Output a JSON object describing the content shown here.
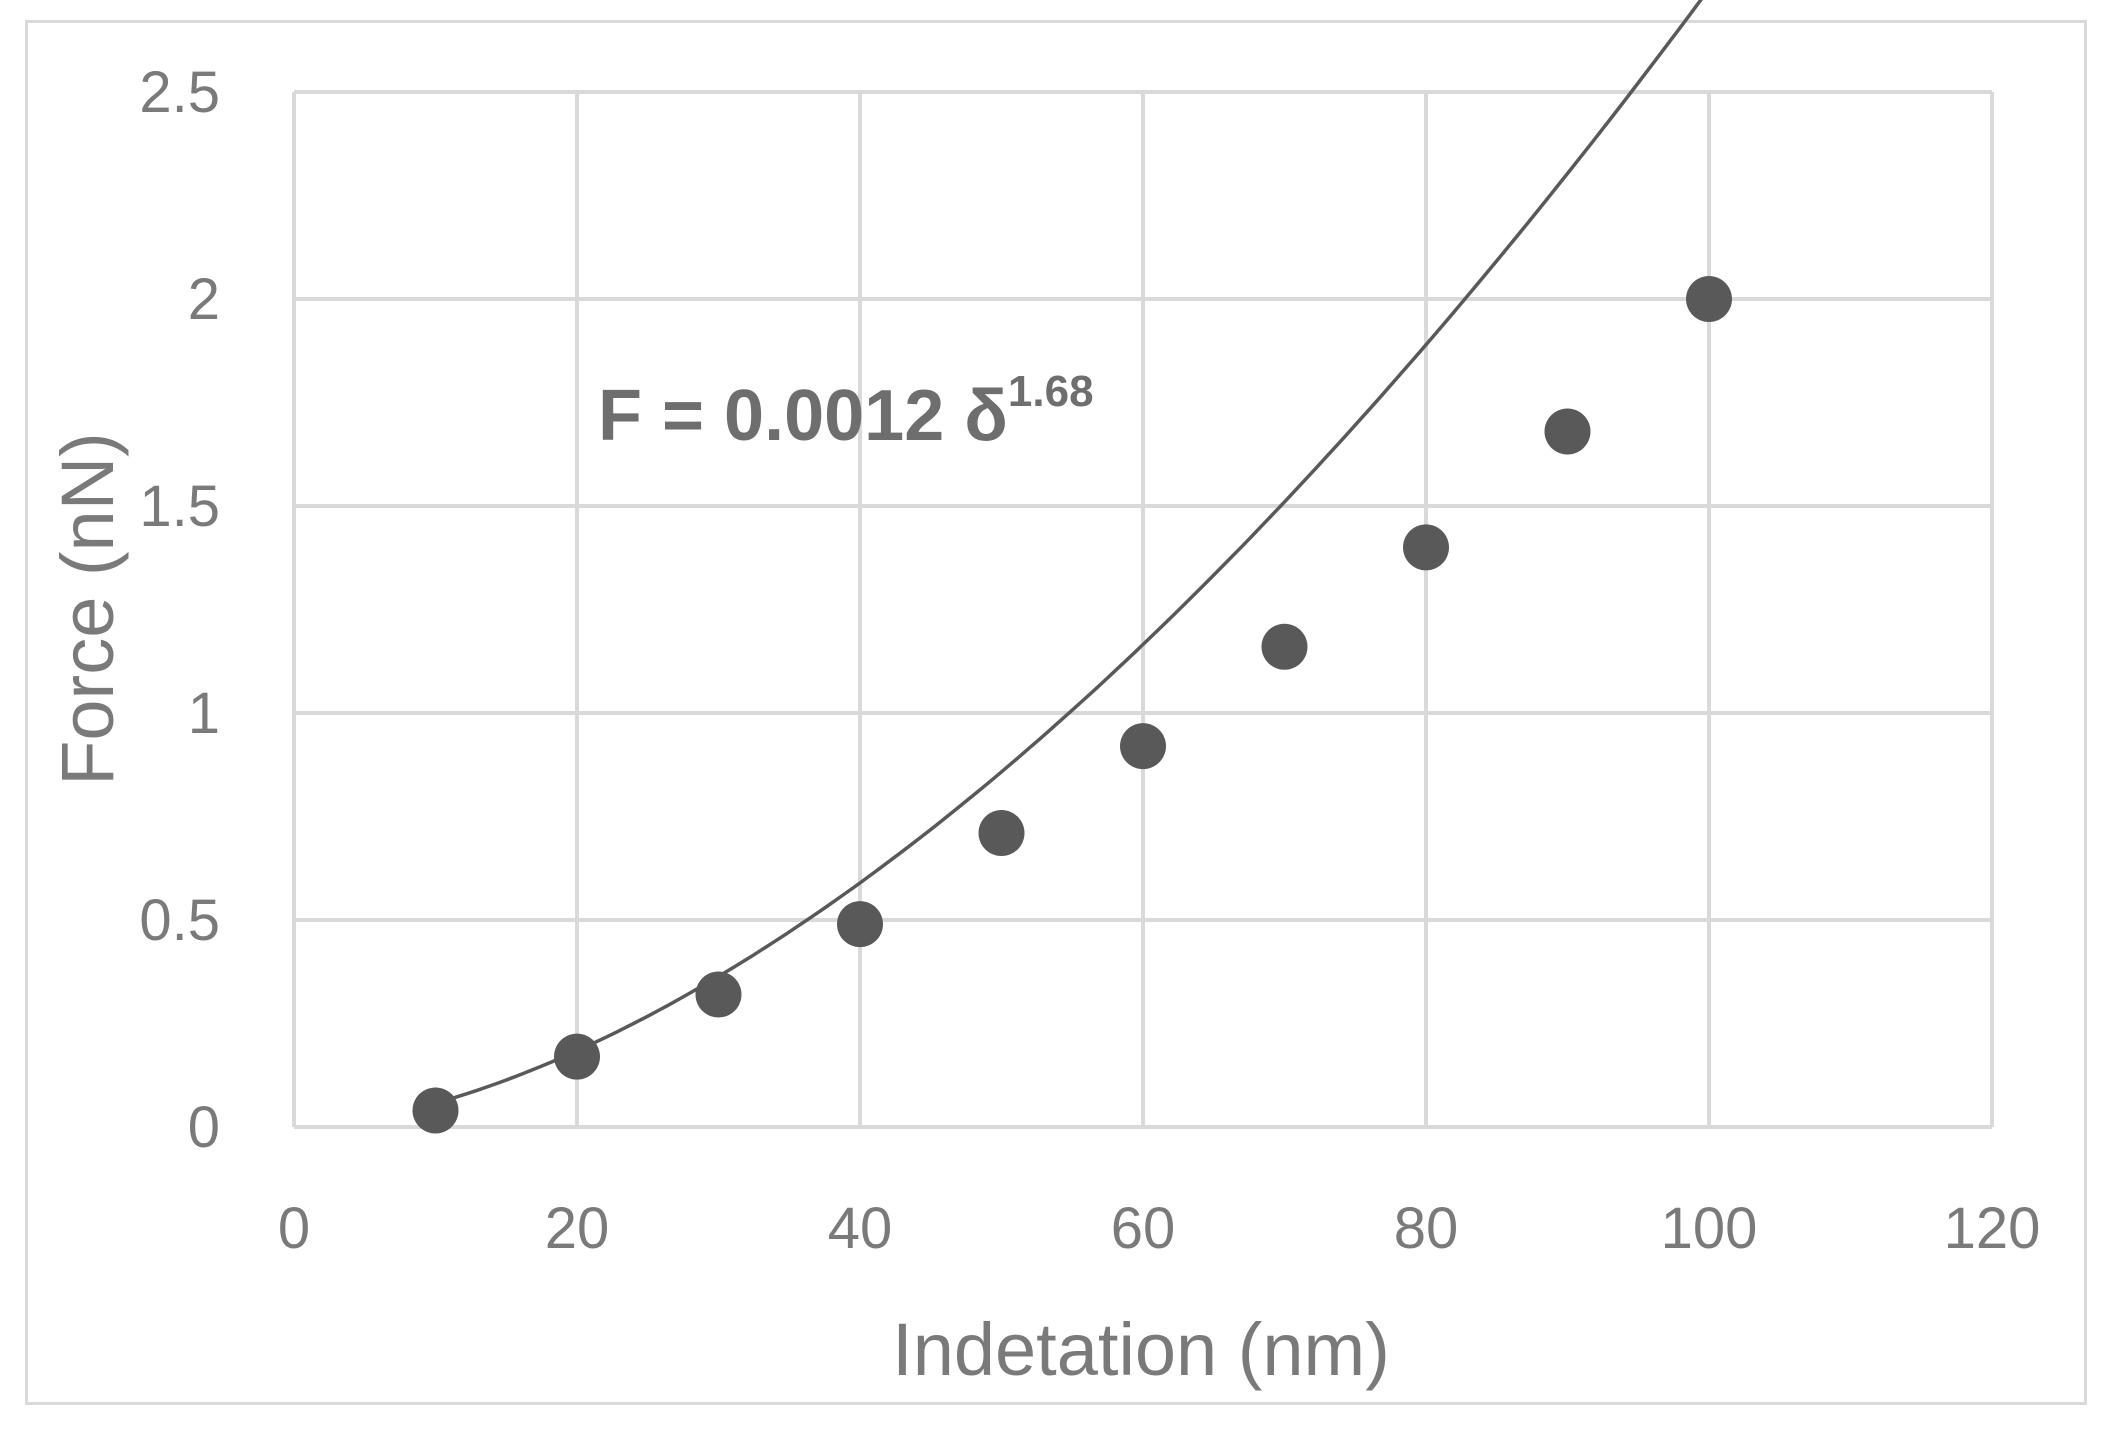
{
  "chart_data": {
    "type": "scatter",
    "title": "",
    "xlabel": "Indetation (nm)",
    "ylabel": "Force (nN)",
    "xlim": [
      0,
      120
    ],
    "ylim": [
      0,
      2.5
    ],
    "xticks": [
      "0",
      "20",
      "40",
      "60",
      "80",
      "100",
      "120"
    ],
    "yticks": [
      "0",
      "0.5",
      "1",
      "1.5",
      "2",
      "2.5"
    ],
    "grid": true,
    "legend": "none",
    "series": [
      {
        "x": [
          10,
          20,
          30,
          40,
          50,
          60,
          70,
          80,
          90,
          100
        ],
        "y": [
          0.04,
          0.17,
          0.32,
          0.49,
          0.71,
          0.92,
          1.16,
          1.4,
          1.68,
          2.0
        ]
      }
    ],
    "trendline": {
      "type": "power",
      "coefficient": 0.0012,
      "exponent": 1.68,
      "x_range": [
        10,
        100
      ]
    },
    "annotation": {
      "text": "F = 0.0012 δ",
      "superscript": "1.68"
    },
    "colors": {
      "marker": "#595959",
      "trendline": "#595959",
      "grid": "#d9d9d9",
      "text": "#7a7a7a"
    }
  }
}
